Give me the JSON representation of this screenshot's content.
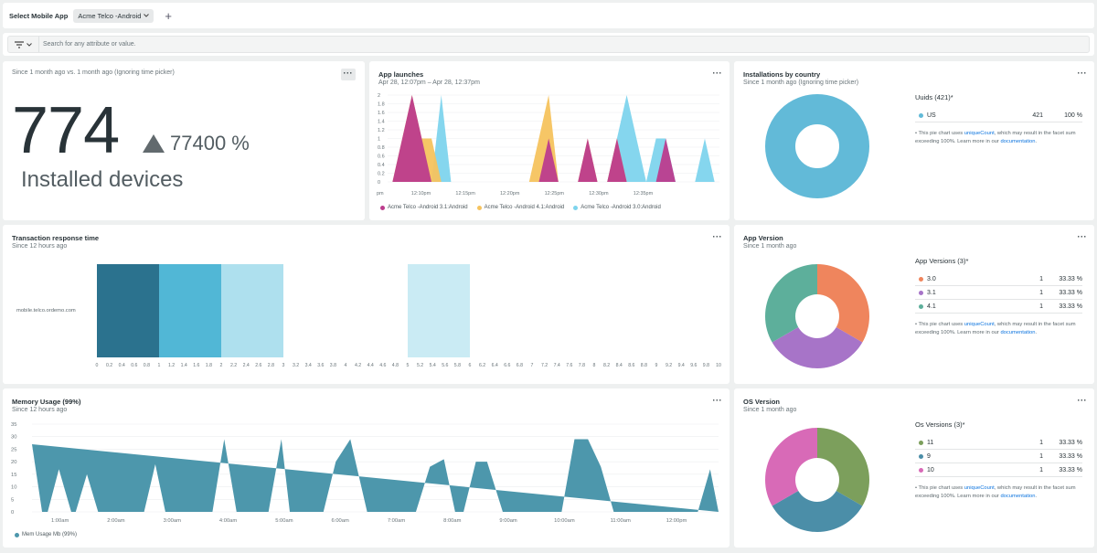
{
  "top": {
    "label": "Select Mobile App",
    "app": "Acme Telco -Android",
    "plus": "+"
  },
  "filter": {
    "placeholder": "Search for any attribute or value."
  },
  "installs": {
    "subtitle": "Since 1 month ago vs. 1 month ago (Ignoring time picker)",
    "value": "774",
    "delta": "77400 %",
    "label": "Installed devices",
    "more": "···"
  },
  "launches": {
    "title": "App launches",
    "subtitle": "Apr 28, 12:07pm – Apr 28, 12:37pm",
    "more": "···",
    "chart_data": {
      "type": "area",
      "yticks": [
        "2",
        "1.8",
        "1.6",
        "1.4",
        "1.2",
        "1",
        "0.8",
        "0.6",
        "0.4",
        "0.2",
        "0"
      ],
      "xticks": [
        "pm",
        "12:10pm",
        "12:15pm",
        "12:20pm",
        "12:25pm",
        "12:30pm",
        "12:35pm"
      ],
      "ylim": [
        0,
        2
      ],
      "series": [
        {
          "name": "Acme Telco -Android 3.1:Android",
          "color": "#bc3c8d",
          "values": [
            [
              0.5,
              0
            ],
            [
              1.5,
              1
            ],
            [
              2.5,
              2
            ],
            [
              3.5,
              1
            ],
            [
              4.5,
              0
            ],
            [
              15.5,
              0
            ],
            [
              16.5,
              1
            ],
            [
              17.5,
              0
            ],
            [
              19.5,
              0
            ],
            [
              20.5,
              1
            ],
            [
              21.5,
              0
            ],
            [
              22.5,
              0
            ],
            [
              23.5,
              1
            ],
            [
              24.5,
              0
            ],
            [
              27.5,
              0
            ],
            [
              28.5,
              1
            ],
            [
              29.5,
              0
            ]
          ]
        },
        {
          "name": "Acme Telco -Android 4.1:Android",
          "color": "#f6c35e",
          "values": [
            [
              0.5,
              0
            ],
            [
              1.5,
              1
            ],
            [
              2.5,
              2
            ],
            [
              3.5,
              1
            ],
            [
              4.5,
              1
            ],
            [
              5.5,
              0
            ],
            [
              14.5,
              0
            ],
            [
              16.5,
              2
            ],
            [
              17.5,
              0
            ],
            [
              19.5,
              0
            ],
            [
              20.5,
              1
            ],
            [
              21.5,
              0
            ],
            [
              22.5,
              0
            ],
            [
              23.5,
              1
            ],
            [
              24.5,
              0
            ]
          ]
        },
        {
          "name": "Acme Telco -Android 3.0:Android",
          "color": "#7ed4ed",
          "values": [
            [
              4.5,
              0
            ],
            [
              5.5,
              2
            ],
            [
              6.5,
              0
            ],
            [
              22.5,
              0
            ],
            [
              23.5,
              1
            ],
            [
              24.5,
              2
            ],
            [
              26.5,
              0
            ],
            [
              27.5,
              1
            ],
            [
              28.5,
              1
            ],
            [
              29.5,
              0
            ],
            [
              31.5,
              0
            ],
            [
              32.5,
              1
            ],
            [
              33.5,
              0
            ]
          ]
        }
      ]
    }
  },
  "country": {
    "title": "Installations by country",
    "subtitle": "Since 1 month ago (Ignoring time picker)",
    "more": "···",
    "table_head": "Uuids (421)*",
    "chart_data": {
      "type": "pie",
      "slices": [
        {
          "label": "US",
          "value": 421,
          "pct": "100 %",
          "color": "#62bad8"
        }
      ]
    },
    "rows": [
      {
        "label": "US",
        "count": "421",
        "pct": "100 %",
        "color": "#62bad8"
      }
    ],
    "note1": "• This pie chart uses ",
    "note_link1": "uniqueCount",
    "note2": ", which may result in the facet sum exceeding 100%. Learn more in our ",
    "note_link2": "documentation",
    "note3": "."
  },
  "response": {
    "title": "Transaction response time",
    "subtitle": "Since 12 hours ago",
    "more": "···",
    "ylabel": "mobile.telco.ordemo.com",
    "chart_data": {
      "type": "heatmap",
      "xlim": [
        0,
        10
      ],
      "xticks": [
        "0",
        "0.2",
        "0.4",
        "0.6",
        "0.8",
        "1",
        "1.2",
        "1.4",
        "1.6",
        "1.8",
        "2",
        "2.2",
        "2.4",
        "2.6",
        "2.8",
        "3",
        "3.2",
        "3.4",
        "3.6",
        "3.8",
        "4",
        "4.2",
        "4.4",
        "4.6",
        "4.8",
        "5",
        "5.2",
        "5.4",
        "5.6",
        "5.8",
        "6",
        "6.2",
        "6.4",
        "6.6",
        "6.8",
        "7",
        "7.2",
        "7.4",
        "7.6",
        "7.8",
        "8",
        "8.2",
        "8.4",
        "8.6",
        "8.8",
        "9",
        "9.2",
        "9.4",
        "9.6",
        "9.8",
        "10"
      ],
      "cells": [
        {
          "x0": 0,
          "x1": 1,
          "color": "#2b728e"
        },
        {
          "x0": 1,
          "x1": 2,
          "color": "#51b7d6"
        },
        {
          "x0": 2,
          "x1": 3,
          "color": "#aee0ee"
        },
        {
          "x0": 5,
          "x1": 6,
          "color": "#caebf4"
        }
      ]
    }
  },
  "appversion": {
    "title": "App Version",
    "subtitle": "Since 1 month ago",
    "more": "···",
    "table_head": "App Versions (3)*",
    "chart_data": {
      "type": "pie",
      "slices": [
        {
          "label": "3.0",
          "value": 1,
          "color": "#ef855d"
        },
        {
          "label": "3.1",
          "value": 1,
          "color": "#a774c8"
        },
        {
          "label": "4.1",
          "value": 1,
          "color": "#5daf9b"
        }
      ]
    },
    "rows": [
      {
        "label": "3.0",
        "count": "1",
        "pct": "33.33 %",
        "color": "#ef855d"
      },
      {
        "label": "3.1",
        "count": "1",
        "pct": "33.33 %",
        "color": "#a774c8"
      },
      {
        "label": "4.1",
        "count": "1",
        "pct": "33.33 %",
        "color": "#5daf9b"
      }
    ],
    "note1": "• This pie chart uses ",
    "note_link1": "uniqueCount",
    "note2": ", which may result in the facet sum exceeding 100%. Learn more in our ",
    "note_link2": "documentation",
    "note3": "."
  },
  "memory": {
    "title": "Memory Usage (99%)",
    "subtitle": "Since 12 hours ago",
    "more": "···",
    "legend": "Mem Usage Mb (99%)",
    "chart_data": {
      "type": "area",
      "color": "#4d97ac",
      "yticks": [
        "35",
        "30",
        "25",
        "20",
        "15",
        "10",
        "5",
        "0"
      ],
      "ylim": [
        0,
        35
      ],
      "xticks": [
        "1:00am",
        "2:00am",
        "3:00am",
        "4:00am",
        "5:00am",
        "6:00am",
        "7:00am",
        "8:00am",
        "9:00am",
        "10:00am",
        "11:00am",
        "12:00pm"
      ],
      "xlim": [
        0.5,
        12.75
      ],
      "points": [
        [
          0.5,
          27
        ],
        [
          0.68,
          0
        ],
        [
          0.78,
          0
        ],
        [
          0.98,
          17
        ],
        [
          1.2,
          0
        ],
        [
          1.28,
          0
        ],
        [
          1.48,
          15
        ],
        [
          1.68,
          0
        ],
        [
          2.5,
          0
        ],
        [
          2.7,
          19
        ],
        [
          2.88,
          0
        ],
        [
          3.72,
          0
        ],
        [
          3.93,
          29
        ],
        [
          4.15,
          0
        ],
        [
          4.72,
          0
        ],
        [
          4.95,
          29
        ],
        [
          5.1,
          0
        ],
        [
          5.7,
          0
        ],
        [
          5.92,
          20
        ],
        [
          6.18,
          29
        ],
        [
          6.48,
          0
        ],
        [
          7.35,
          0
        ],
        [
          7.6,
          18
        ],
        [
          7.85,
          21
        ],
        [
          8.05,
          0
        ],
        [
          8.2,
          0
        ],
        [
          8.42,
          20
        ],
        [
          8.62,
          20
        ],
        [
          8.9,
          0
        ],
        [
          9.95,
          0
        ],
        [
          10.18,
          29
        ],
        [
          10.42,
          29
        ],
        [
          10.65,
          18
        ],
        [
          10.88,
          0
        ],
        [
          12.38,
          0
        ],
        [
          12.6,
          17
        ],
        [
          12.75,
          0
        ]
      ]
    }
  },
  "osversion": {
    "title": "OS Version",
    "subtitle": "Since 1 month ago",
    "more": "···",
    "table_head": "Os Versions (3)*",
    "chart_data": {
      "type": "pie",
      "slices": [
        {
          "label": "11",
          "value": 1,
          "color": "#7c9f5c"
        },
        {
          "label": "9",
          "value": 1,
          "color": "#4b8ea8"
        },
        {
          "label": "10",
          "value": 1,
          "color": "#d86ab7"
        }
      ]
    },
    "rows": [
      {
        "label": "11",
        "count": "1",
        "pct": "33.33 %",
        "color": "#7c9f5c"
      },
      {
        "label": "9",
        "count": "1",
        "pct": "33.33 %",
        "color": "#4b8ea8"
      },
      {
        "label": "10",
        "count": "1",
        "pct": "33.33 %",
        "color": "#d86ab7"
      }
    ],
    "note1": "• This pie chart uses ",
    "note_link1": "uniqueCount",
    "note2": ", which may result in the facet sum exceeding 100%. Learn more in our ",
    "note_link2": "documentation",
    "note3": "."
  }
}
